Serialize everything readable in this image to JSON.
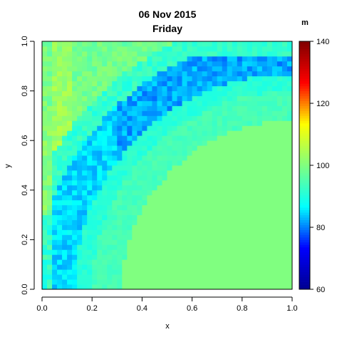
{
  "chart_data": {
    "type": "heatmap",
    "title": "06 Nov 2015",
    "subtitle": "Friday",
    "xlabel": "x",
    "ylabel": "y",
    "xlim": [
      0,
      1
    ],
    "ylim": [
      0,
      1
    ],
    "x_ticks": [
      "0.0",
      "0.2",
      "0.4",
      "0.6",
      "0.8",
      "1.0"
    ],
    "y_ticks": [
      "0.0",
      "0.2",
      "0.4",
      "0.6",
      "0.8",
      "1.0"
    ],
    "x_tick_values": [
      0,
      0.2,
      0.4,
      0.6,
      0.8,
      1.0
    ],
    "y_tick_values": [
      0,
      0.2,
      0.4,
      0.6,
      0.8,
      1.0
    ],
    "grid_size": 50,
    "background_value": 100,
    "colorbar": {
      "title": "m",
      "min": 60,
      "max": 140,
      "ticks": [
        "60",
        "80",
        "100",
        "120",
        "140"
      ],
      "tick_values": [
        60,
        80,
        100,
        120,
        140
      ],
      "colors": [
        "#00008F",
        "#0000FF",
        "#00FFFF",
        "#80FF80",
        "#FFFF00",
        "#FF0000",
        "#800000"
      ]
    }
  }
}
